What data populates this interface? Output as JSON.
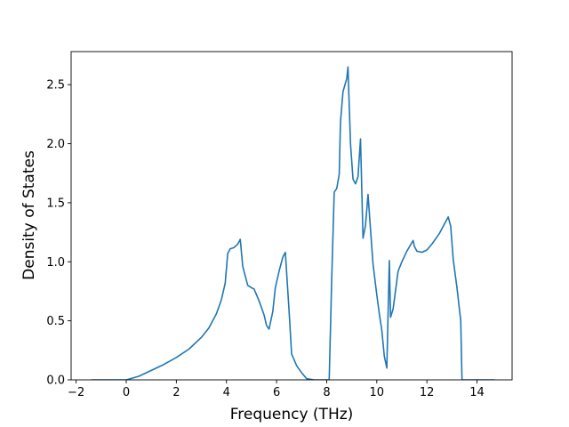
{
  "chart_data": {
    "type": "line",
    "title": "",
    "xlabel": "Frequency (THz)",
    "ylabel": "Density of States",
    "xlim": [
      -2.2,
      15.4
    ],
    "ylim": [
      0.0,
      2.78
    ],
    "xticks": [
      -2,
      0,
      2,
      4,
      6,
      8,
      10,
      12,
      14
    ],
    "xtick_labels": [
      "−2",
      "0",
      "2",
      "4",
      "6",
      "8",
      "10",
      "12",
      "14"
    ],
    "yticks": [
      0.0,
      0.5,
      1.0,
      1.5,
      2.0,
      2.5
    ],
    "ytick_labels": [
      "0.0",
      "0.5",
      "1.0",
      "1.5",
      "2.0",
      "2.5"
    ],
    "grid": false,
    "legend": "none",
    "series": [
      {
        "color": "#1f77b4",
        "x": [
          -1.4,
          -0.5,
          0.0,
          0.5,
          1.0,
          1.5,
          2.0,
          2.5,
          3.0,
          3.3,
          3.6,
          3.8,
          3.95,
          4.05,
          4.15,
          4.3,
          4.45,
          4.5,
          4.55,
          4.65,
          4.85,
          5.0,
          5.1,
          5.3,
          5.5,
          5.6,
          5.7,
          5.85,
          5.95,
          6.1,
          6.25,
          6.35,
          6.5,
          6.6,
          6.8,
          7.0,
          7.2,
          7.5,
          8.0,
          8.1,
          8.2,
          8.3,
          8.4,
          8.5,
          8.55,
          8.65,
          8.8,
          8.85,
          8.95,
          9.05,
          9.15,
          9.25,
          9.35,
          9.45,
          9.55,
          9.65,
          9.75,
          9.85,
          10.0,
          10.1,
          10.2,
          10.3,
          10.4,
          10.5,
          10.55,
          10.65,
          10.85,
          11.0,
          11.2,
          11.45,
          11.5,
          11.6,
          11.8,
          12.0,
          12.2,
          12.5,
          12.7,
          12.85,
          12.95,
          13.05,
          13.2,
          13.35,
          13.4,
          13.5,
          14.0,
          14.7
        ],
        "y": [
          0.0,
          0.0,
          0.0,
          0.03,
          0.08,
          0.13,
          0.19,
          0.26,
          0.36,
          0.44,
          0.56,
          0.68,
          0.82,
          1.07,
          1.11,
          1.12,
          1.15,
          1.17,
          1.19,
          0.96,
          0.8,
          0.78,
          0.77,
          0.67,
          0.55,
          0.46,
          0.43,
          0.58,
          0.78,
          0.92,
          1.04,
          1.08,
          0.58,
          0.22,
          0.12,
          0.06,
          0.01,
          0.0,
          0.0,
          0.0,
          0.85,
          1.59,
          1.62,
          1.74,
          2.18,
          2.44,
          2.55,
          2.65,
          2.0,
          1.7,
          1.66,
          1.72,
          2.04,
          1.2,
          1.31,
          1.57,
          1.27,
          0.98,
          0.72,
          0.56,
          0.42,
          0.2,
          0.1,
          1.01,
          0.53,
          0.6,
          0.92,
          1.0,
          1.09,
          1.18,
          1.13,
          1.09,
          1.08,
          1.1,
          1.15,
          1.24,
          1.32,
          1.38,
          1.3,
          1.02,
          0.78,
          0.5,
          0.0,
          0.0,
          0.0,
          0.0
        ]
      }
    ]
  }
}
